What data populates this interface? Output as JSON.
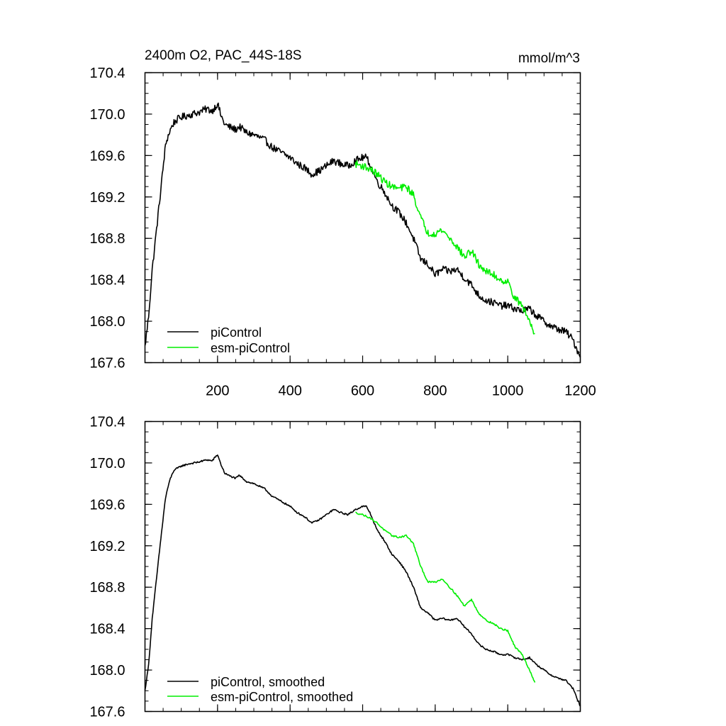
{
  "chart_data": [
    {
      "type": "line",
      "title": "2400m O2, PAC_44S-18S",
      "units": "mmol/m^3",
      "xlim": [
        0,
        1200
      ],
      "ylim": [
        167.6,
        170.4
      ],
      "xticks": [
        200,
        400,
        600,
        800,
        1000,
        1200
      ],
      "yticks": [
        167.6,
        168.0,
        168.4,
        168.8,
        169.2,
        169.6,
        170.0,
        170.4
      ],
      "show_x_tick_labels": true,
      "noise": 0.035,
      "series": [
        {
          "name": "piControl",
          "color": "#000000",
          "x": [
            0,
            10,
            20,
            40,
            55,
            60,
            70,
            80,
            90,
            100,
            120,
            150,
            170,
            185,
            200,
            210,
            220,
            230,
            250,
            260,
            280,
            300,
            330,
            350,
            380,
            400,
            420,
            440,
            460,
            480,
            500,
            520,
            540,
            560,
            580,
            600,
            610,
            620,
            640,
            660,
            680,
            700,
            720,
            740,
            760,
            780,
            800,
            820,
            840,
            860,
            880,
            900,
            920,
            940,
            960,
            980,
            1000,
            1020,
            1040,
            1060,
            1080,
            1100,
            1120,
            1140,
            1160,
            1180,
            1200
          ],
          "values": [
            167.75,
            168.05,
            168.5,
            169.15,
            169.65,
            169.75,
            169.85,
            169.92,
            169.95,
            169.97,
            169.99,
            170.02,
            170.05,
            170.03,
            170.1,
            169.98,
            169.9,
            169.88,
            169.85,
            169.88,
            169.82,
            169.8,
            169.75,
            169.68,
            169.62,
            169.58,
            169.52,
            169.48,
            169.42,
            169.45,
            169.5,
            169.55,
            169.52,
            169.5,
            169.55,
            169.58,
            169.58,
            169.52,
            169.35,
            169.25,
            169.12,
            169.05,
            168.95,
            168.8,
            168.6,
            168.55,
            168.45,
            168.5,
            168.48,
            168.5,
            168.42,
            168.35,
            168.25,
            168.2,
            168.18,
            168.15,
            168.15,
            168.12,
            168.1,
            168.12,
            168.05,
            168.0,
            167.95,
            167.92,
            167.9,
            167.82,
            167.65
          ]
        },
        {
          "name": "esm-piControl",
          "color": "#00ee00",
          "x": [
            580,
            600,
            620,
            640,
            660,
            680,
            700,
            720,
            740,
            760,
            780,
            800,
            820,
            840,
            860,
            880,
            900,
            920,
            940,
            960,
            980,
            1000,
            1020,
            1040,
            1060,
            1075
          ],
          "values": [
            169.52,
            169.5,
            169.47,
            169.42,
            169.35,
            169.3,
            169.28,
            169.3,
            169.22,
            169.0,
            168.85,
            168.85,
            168.88,
            168.8,
            168.72,
            168.62,
            168.68,
            168.55,
            168.48,
            168.45,
            168.4,
            168.38,
            168.22,
            168.15,
            168.0,
            167.88
          ]
        }
      ],
      "legend": {
        "position": "bottom-left",
        "entries": [
          "piControl",
          "esm-piControl"
        ]
      }
    },
    {
      "type": "line",
      "title": "",
      "xlim": [
        0,
        1200
      ],
      "ylim": [
        167.6,
        170.4
      ],
      "xticks": [
        200,
        400,
        600,
        800,
        1000,
        1200
      ],
      "yticks": [
        167.6,
        168.0,
        168.4,
        168.8,
        169.2,
        169.6,
        170.0,
        170.4
      ],
      "show_x_tick_labels": false,
      "noise": 0.008,
      "series": [
        {
          "name": "piControl, smoothed",
          "color": "#000000",
          "x": [
            0,
            10,
            20,
            40,
            55,
            60,
            70,
            80,
            90,
            100,
            120,
            150,
            170,
            185,
            200,
            210,
            220,
            230,
            250,
            260,
            280,
            300,
            330,
            350,
            380,
            400,
            420,
            440,
            460,
            480,
            500,
            520,
            540,
            560,
            580,
            600,
            610,
            620,
            640,
            660,
            680,
            700,
            720,
            740,
            760,
            780,
            800,
            820,
            840,
            860,
            880,
            900,
            920,
            940,
            960,
            980,
            1000,
            1020,
            1040,
            1060,
            1080,
            1100,
            1120,
            1140,
            1160,
            1180,
            1200
          ],
          "values": [
            167.8,
            168.05,
            168.5,
            169.15,
            169.62,
            169.72,
            169.85,
            169.93,
            169.95,
            169.97,
            169.99,
            170.01,
            170.03,
            170.02,
            170.08,
            169.98,
            169.9,
            169.88,
            169.85,
            169.88,
            169.82,
            169.8,
            169.75,
            169.68,
            169.62,
            169.58,
            169.52,
            169.48,
            169.42,
            169.45,
            169.5,
            169.55,
            169.52,
            169.5,
            169.55,
            169.58,
            169.58,
            169.52,
            169.35,
            169.25,
            169.12,
            169.05,
            168.95,
            168.8,
            168.6,
            168.55,
            168.48,
            168.5,
            168.48,
            168.5,
            168.42,
            168.35,
            168.25,
            168.2,
            168.18,
            168.15,
            168.15,
            168.12,
            168.1,
            168.12,
            168.05,
            168.0,
            167.95,
            167.92,
            167.9,
            167.82,
            167.65
          ]
        },
        {
          "name": "esm-piControl, smoothed",
          "color": "#00ee00",
          "x": [
            580,
            600,
            620,
            640,
            660,
            680,
            700,
            720,
            740,
            760,
            780,
            800,
            820,
            840,
            860,
            880,
            900,
            920,
            940,
            960,
            980,
            1000,
            1020,
            1040,
            1060,
            1075
          ],
          "values": [
            169.52,
            169.5,
            169.47,
            169.42,
            169.35,
            169.3,
            169.28,
            169.3,
            169.22,
            169.0,
            168.85,
            168.85,
            168.88,
            168.8,
            168.72,
            168.62,
            168.68,
            168.55,
            168.48,
            168.45,
            168.4,
            168.38,
            168.22,
            168.15,
            168.0,
            167.88
          ]
        }
      ],
      "legend": {
        "position": "bottom-left",
        "entries": [
          "piControl, smoothed",
          "esm-piControl, smoothed"
        ]
      }
    }
  ]
}
